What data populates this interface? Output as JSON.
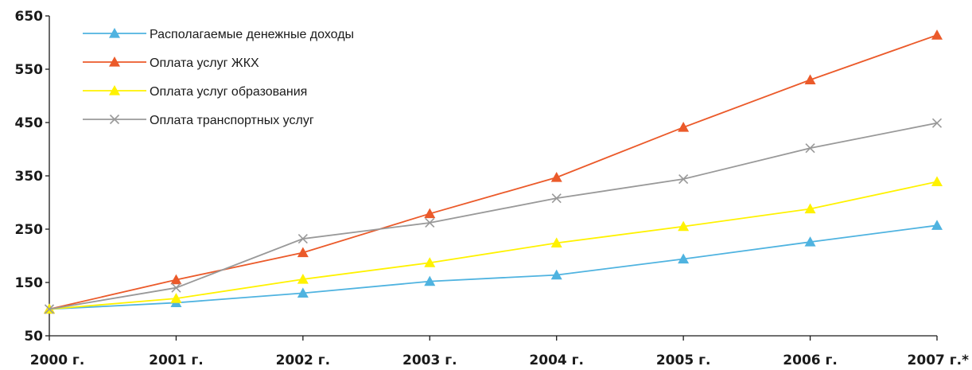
{
  "chart_data": {
    "type": "line",
    "categories": [
      "2000 г.",
      "2001 г.",
      "2002 г.",
      "2003 г.",
      "2004 г.",
      "2005 г.",
      "2006 г.",
      "2007 г.*"
    ],
    "ylim": [
      50,
      650
    ],
    "yticks": [
      "50",
      "150",
      "250",
      "350",
      "450",
      "550",
      "650"
    ],
    "grid": false,
    "legend_position": "top-left",
    "series": [
      {
        "name": "Располагаемые денежные доходы",
        "color": "#4fb3e0",
        "marker": "triangle",
        "values": [
          100,
          112,
          130,
          152,
          164,
          194,
          226,
          257
        ]
      },
      {
        "name": "Оплата услуг ЖКХ",
        "color": "#eb5a2a",
        "marker": "triangle",
        "values": [
          100,
          155,
          206,
          279,
          347,
          441,
          530,
          614
        ]
      },
      {
        "name": "Оплата услуг образования",
        "color": "#fff200",
        "marker": "triangle",
        "values": [
          100,
          120,
          156,
          187,
          224,
          255,
          288,
          339
        ]
      },
      {
        "name": "Оплата транспортных услуг",
        "color": "#999999",
        "marker": "cross",
        "values": [
          100,
          140,
          232,
          262,
          308,
          344,
          402,
          449
        ]
      }
    ]
  }
}
